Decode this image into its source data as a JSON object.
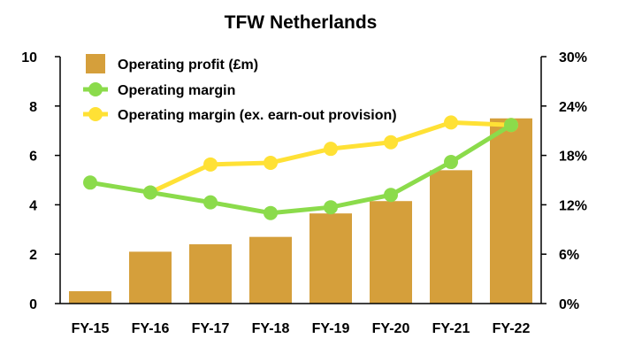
{
  "chart_data": {
    "type": "bar",
    "title": "TFW Netherlands",
    "categories": [
      "FY-15",
      "FY-16",
      "FY-17",
      "FY-18",
      "FY-19",
      "FY-20",
      "FY-21",
      "FY-22"
    ],
    "series": [
      {
        "name": "Operating profit (£m)",
        "type": "bar",
        "axis": "left",
        "color": "#D59F3B",
        "values": [
          0.5,
          2.1,
          2.4,
          2.7,
          3.65,
          4.15,
          5.4,
          7.5
        ]
      },
      {
        "name": "Operating margin",
        "type": "line",
        "axis": "right",
        "color": "#8BDB4B",
        "values": [
          14.7,
          13.5,
          12.3,
          11.0,
          11.7,
          13.2,
          17.2,
          21.7
        ]
      },
      {
        "name": "Operating margin (ex. earn-out provision)",
        "type": "line",
        "axis": "right",
        "color": "#FFE135",
        "values": [
          null,
          13.5,
          16.9,
          17.1,
          18.8,
          19.6,
          22.0,
          21.7
        ]
      }
    ],
    "y_left": {
      "ylim": [
        0,
        10
      ],
      "ticks": [
        "0",
        "2",
        "4",
        "6",
        "8",
        "10"
      ]
    },
    "y_right": {
      "ylim": [
        0,
        30
      ],
      "ticks": [
        "0%",
        "6%",
        "12%",
        "18%",
        "24%",
        "30%"
      ]
    },
    "grid": false,
    "legend_placement": "top-left"
  }
}
